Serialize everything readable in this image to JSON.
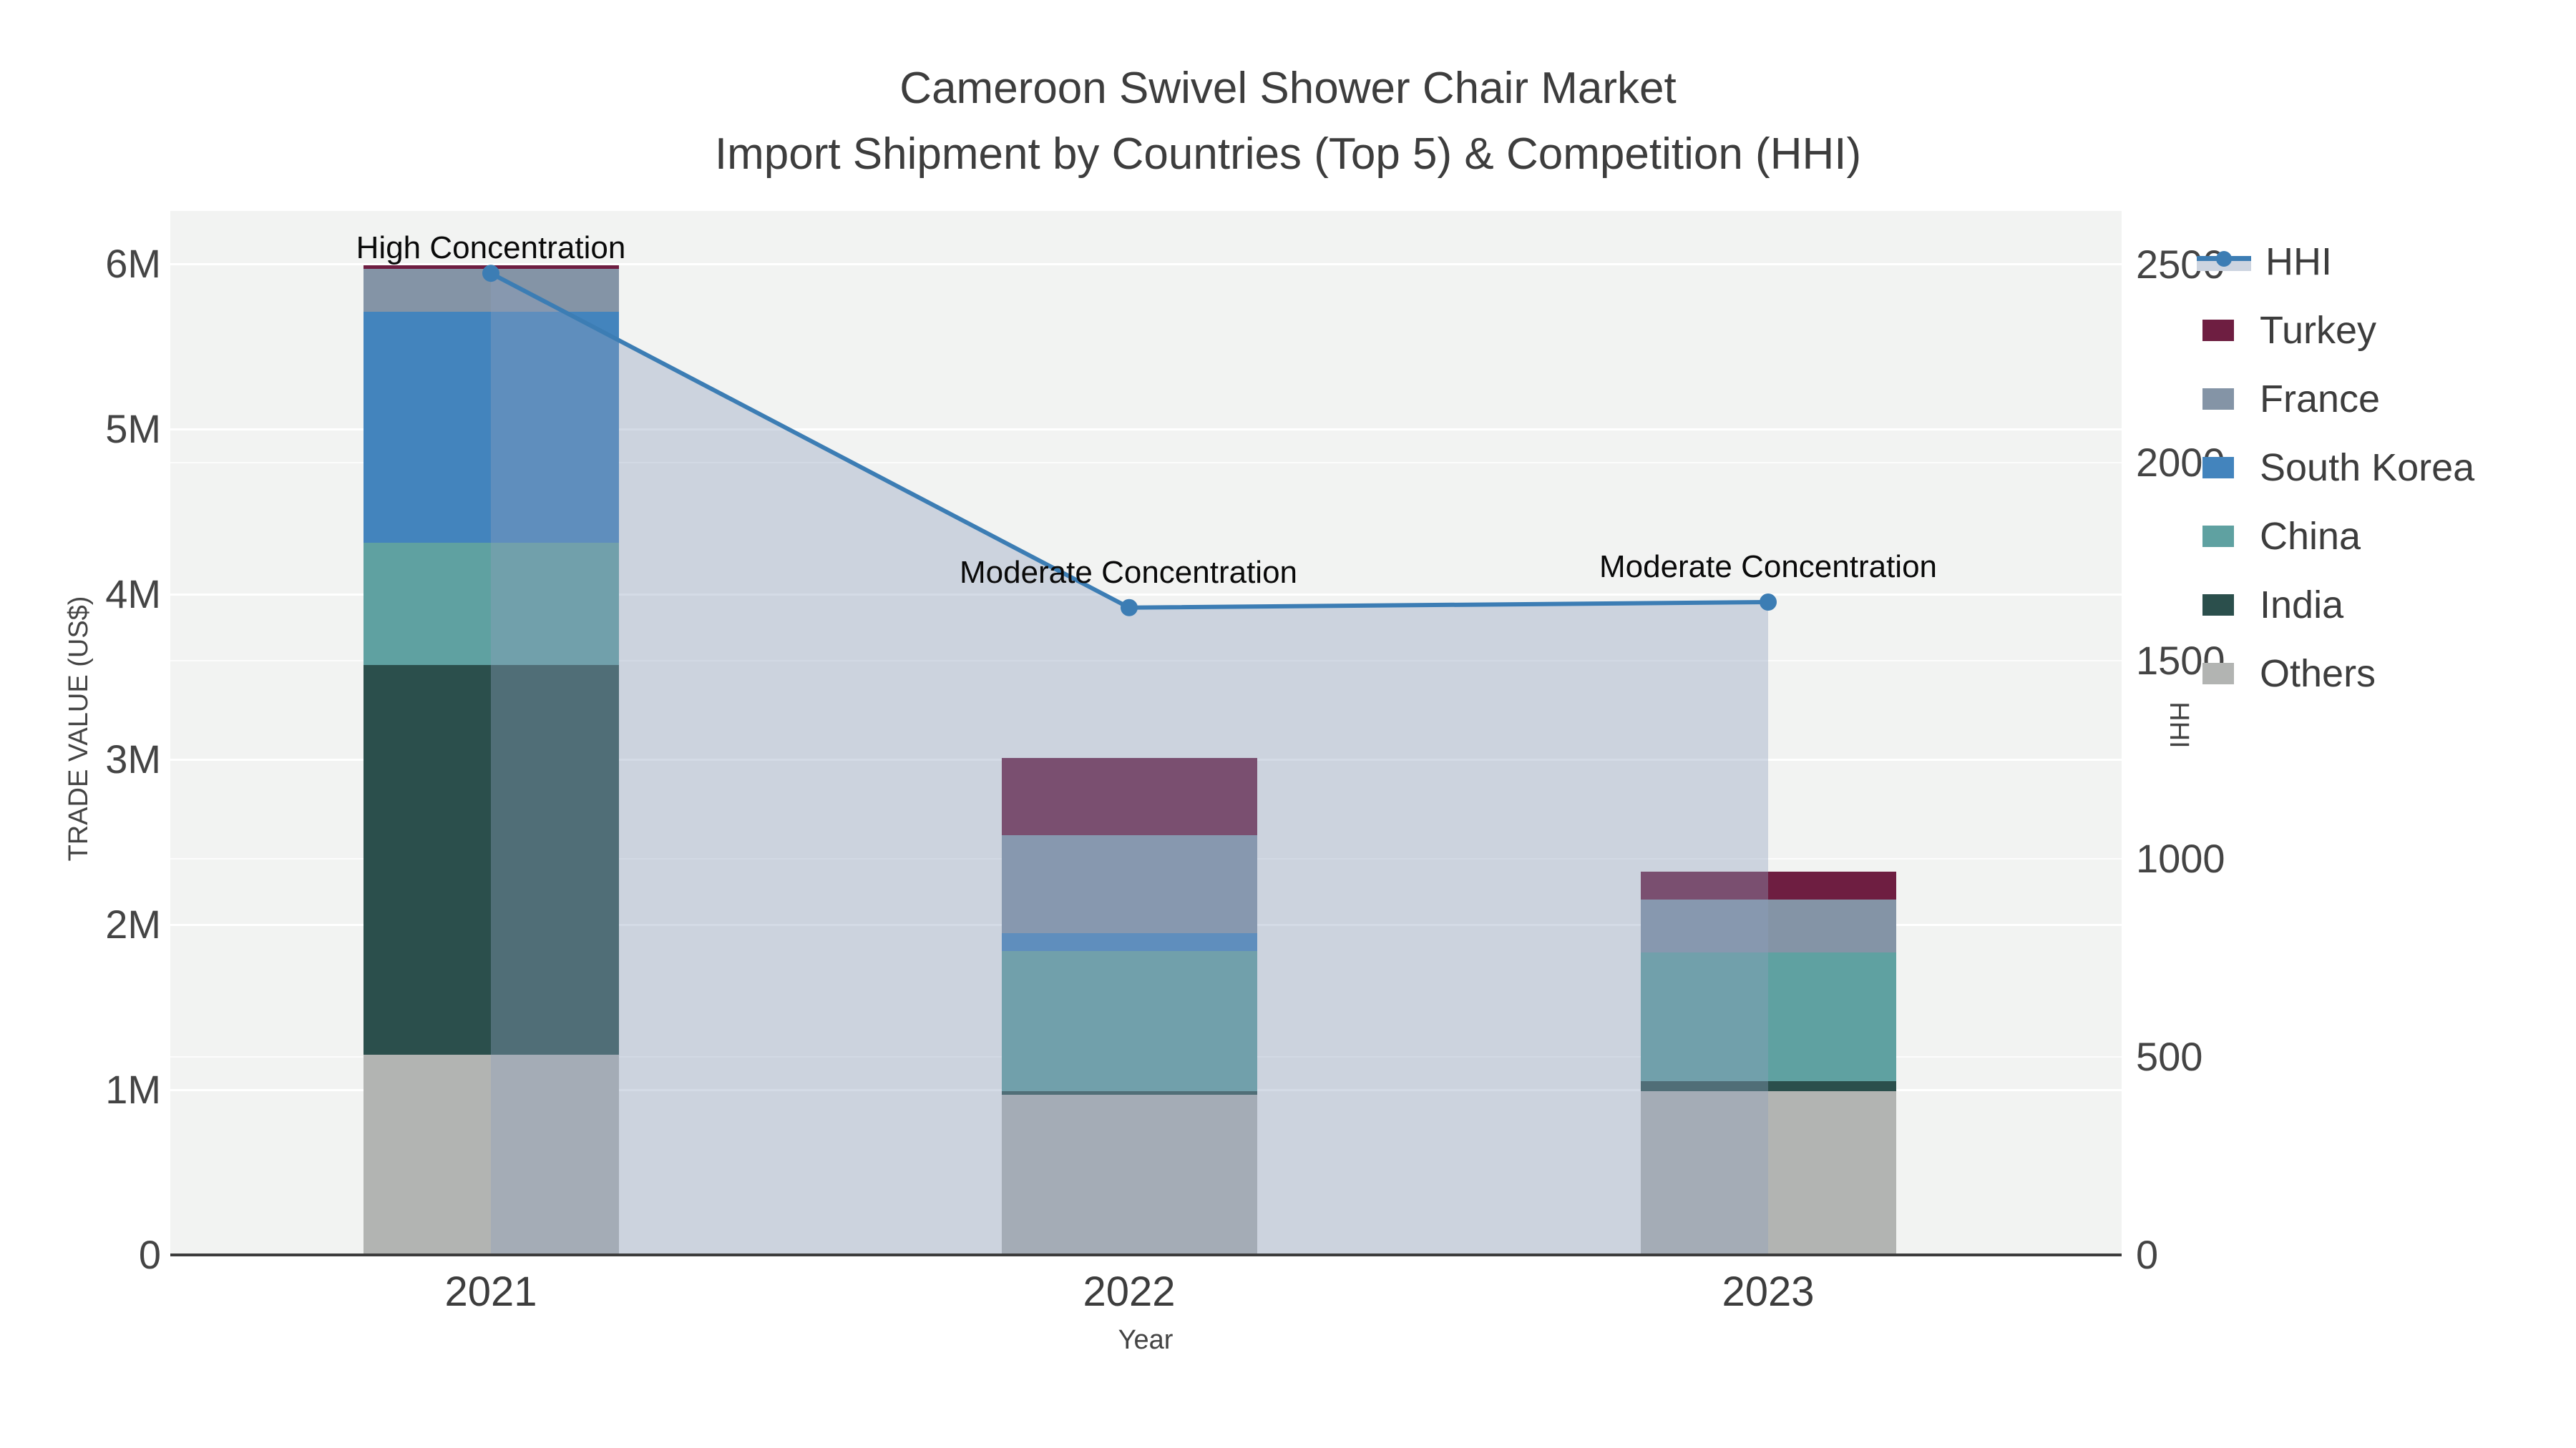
{
  "title": {
    "line1": "Cameroon Swivel Shower Chair Market",
    "line2": "Import Shipment by Countries (Top 5) & Competition (HHI)"
  },
  "axes": {
    "y_left": {
      "title": "TRADE VALUE (US$)",
      "ticks": [
        "0",
        "1M",
        "2M",
        "3M",
        "4M",
        "5M",
        "6M"
      ]
    },
    "y_right": {
      "title": "HHI",
      "ticks": [
        "0",
        "500",
        "1000",
        "1500",
        "2000",
        "2500"
      ]
    },
    "x": {
      "title": "Year",
      "ticks": [
        "2021",
        "2022",
        "2023"
      ]
    }
  },
  "annotations": [
    {
      "text": "High Concentration",
      "year": "2021"
    },
    {
      "text": "Moderate Concentration",
      "year": "2022"
    },
    {
      "text": "Moderate Concentration",
      "year": "2023"
    }
  ],
  "legend": {
    "items": [
      {
        "label": "HHI",
        "type": "line"
      },
      {
        "label": "Turkey",
        "type": "bar"
      },
      {
        "label": "France",
        "type": "bar"
      },
      {
        "label": "South Korea",
        "type": "bar"
      },
      {
        "label": "China",
        "type": "bar"
      },
      {
        "label": "India",
        "type": "bar"
      },
      {
        "label": "Others",
        "type": "bar"
      }
    ]
  },
  "colors": {
    "plot_background": "#f2f3f2",
    "gridline": "#ffffff",
    "axis_line": "#3c3c3c",
    "hhi_line": "#3c7db4",
    "hhi_area_fill": "rgba(142,160,190,0.38)",
    "legend_area_band": "#ccd4e0",
    "turkey": "#6e1e41",
    "france": "#8494a6",
    "south_korea": "#4384bd",
    "china": "#5fa1a1",
    "india": "#2b4f4c",
    "others": "#b2b4b2"
  },
  "chart_data": {
    "type": "bar",
    "subtype": "stacked bars with overlaid line+area (dual axis)",
    "categories": [
      "2021",
      "2022",
      "2023"
    ],
    "bar_value_unit": "US$ millions",
    "stack_order_bottom_to_top": [
      "Others",
      "India",
      "China",
      "South Korea",
      "France",
      "Turkey"
    ],
    "series": [
      {
        "name": "Others",
        "color": "#b2b4b2",
        "values": [
          1.21,
          0.97,
          0.99
        ]
      },
      {
        "name": "India",
        "color": "#2b4f4c",
        "values": [
          2.36,
          0.02,
          0.06
        ]
      },
      {
        "name": "China",
        "color": "#5fa1a1",
        "values": [
          0.74,
          0.85,
          0.78
        ]
      },
      {
        "name": "South Korea",
        "color": "#4384bd",
        "values": [
          1.4,
          0.11,
          0.0
        ]
      },
      {
        "name": "France",
        "color": "#8494a6",
        "values": [
          0.26,
          0.59,
          0.32
        ]
      },
      {
        "name": "Turkey",
        "color": "#6e1e41",
        "values": [
          0.02,
          0.47,
          0.17
        ]
      }
    ],
    "totals_by_year": [
      5.99,
      3.01,
      2.32
    ],
    "line_series": {
      "name": "HHI",
      "color": "#3c7db4",
      "fill": "rgba(142,160,190,0.38)",
      "values": [
        2478,
        1634,
        1648
      ]
    },
    "title": "Cameroon Swivel Shower Chair Market — Import Shipment by Countries (Top 5) & Competition (HHI)",
    "xlabel": "Year",
    "ylabel_left": "TRADE VALUE (US$)",
    "ylabel_right": "HHI",
    "ylim_left": [
      0,
      6.32
    ],
    "ylim_right": [
      0,
      2635
    ],
    "grid": true,
    "legend_position": "right"
  }
}
